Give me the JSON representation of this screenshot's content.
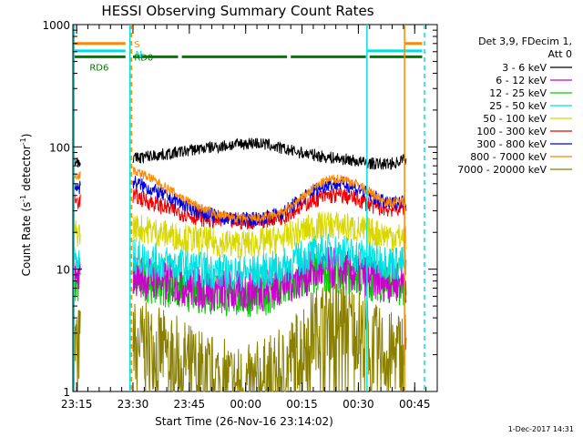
{
  "chart_data": {
    "type": "line",
    "title": "HESSI Observing Summary Count Rates",
    "xlabel": "Start Time (26-Nov-16 23:14:02)",
    "ylabel_main": "Count Rate (s",
    "ylabel_sup1": "-1",
    "ylabel_mid": " detector",
    "ylabel_sup2": "-1",
    "ylabel_end": ")",
    "y_scale": "log",
    "ylim": [
      1,
      1000
    ],
    "xlim_minutes": [
      0,
      97
    ],
    "y_ticks": [
      {
        "value": 1,
        "label": "1"
      },
      {
        "value": 10,
        "label": "10"
      },
      {
        "value": 100,
        "label": "100"
      },
      {
        "value": 1000,
        "label": "1000"
      }
    ],
    "x_ticks": [
      {
        "t": 1,
        "label": "23:15"
      },
      {
        "t": 16,
        "label": "23:30"
      },
      {
        "t": 31,
        "label": "23:45"
      },
      {
        "t": 46,
        "label": "00:00"
      },
      {
        "t": 61,
        "label": "00:15"
      },
      {
        "t": 76,
        "label": "00:30"
      },
      {
        "t": 91,
        "label": "00:45"
      }
    ],
    "legend_header": [
      "Det 3,9, FDecim 1,",
      "Att 0"
    ],
    "series": [
      {
        "name": "3 - 6 keV",
        "color": "#000000",
        "points": [
          [
            16,
            80
          ],
          [
            20,
            84
          ],
          [
            26,
            88
          ],
          [
            32,
            95
          ],
          [
            38,
            100
          ],
          [
            44,
            105
          ],
          [
            48,
            108
          ],
          [
            52,
            104
          ],
          [
            56,
            96
          ],
          [
            62,
            88
          ],
          [
            68,
            82
          ],
          [
            74,
            78
          ],
          [
            78,
            74
          ],
          [
            82,
            72
          ],
          [
            86,
            74
          ],
          [
            88,
            80
          ]
        ]
      },
      {
        "name": "6 - 12 keV",
        "color": "#cc00cc",
        "points": [
          [
            16,
            9
          ],
          [
            20,
            8.5
          ],
          [
            26,
            7.8
          ],
          [
            32,
            7.2
          ],
          [
            38,
            6.8
          ],
          [
            44,
            6.6
          ],
          [
            50,
            6.8
          ],
          [
            56,
            7.5
          ],
          [
            60,
            8.5
          ],
          [
            64,
            9.5
          ],
          [
            68,
            10.2
          ],
          [
            72,
            10
          ],
          [
            76,
            9.2
          ],
          [
            80,
            8.5
          ],
          [
            84,
            8
          ],
          [
            88,
            8
          ]
        ]
      },
      {
        "name": "12 - 25 keV",
        "color": "#00cc00",
        "points": [
          [
            16,
            8.5
          ],
          [
            20,
            8
          ],
          [
            26,
            7.2
          ],
          [
            32,
            6.6
          ],
          [
            38,
            6.2
          ],
          [
            44,
            6
          ],
          [
            50,
            6.2
          ],
          [
            56,
            6.8
          ],
          [
            60,
            8
          ],
          [
            64,
            9
          ],
          [
            68,
            9.6
          ],
          [
            72,
            9.4
          ],
          [
            76,
            8.8
          ],
          [
            80,
            8.2
          ],
          [
            84,
            7.8
          ],
          [
            88,
            7.5
          ]
        ]
      },
      {
        "name": "25 - 50 keV",
        "color": "#00e0e0",
        "points": [
          [
            16,
            12.5
          ],
          [
            20,
            12
          ],
          [
            26,
            11
          ],
          [
            32,
            10.2
          ],
          [
            38,
            9.6
          ],
          [
            44,
            9.3
          ],
          [
            50,
            9.5
          ],
          [
            56,
            10.5
          ],
          [
            60,
            12
          ],
          [
            64,
            13.5
          ],
          [
            68,
            14
          ],
          [
            72,
            13.8
          ],
          [
            76,
            13
          ],
          [
            80,
            12
          ],
          [
            84,
            11.5
          ],
          [
            88,
            11
          ]
        ]
      },
      {
        "name": "50 - 100 keV",
        "color": "#d8d800",
        "points": [
          [
            16,
            22
          ],
          [
            20,
            21
          ],
          [
            26,
            19
          ],
          [
            32,
            17.5
          ],
          [
            38,
            16.5
          ],
          [
            44,
            16
          ],
          [
            50,
            16.5
          ],
          [
            56,
            18
          ],
          [
            60,
            20
          ],
          [
            64,
            22
          ],
          [
            68,
            23
          ],
          [
            72,
            22.5
          ],
          [
            76,
            21
          ],
          [
            80,
            20
          ],
          [
            84,
            19
          ],
          [
            88,
            18
          ]
        ]
      },
      {
        "name": "100 - 300 keV",
        "color": "#ee0000",
        "points": [
          [
            16,
            40
          ],
          [
            20,
            36
          ],
          [
            26,
            31
          ],
          [
            32,
            27
          ],
          [
            38,
            25
          ],
          [
            44,
            24.5
          ],
          [
            50,
            25
          ],
          [
            56,
            27
          ],
          [
            60,
            32
          ],
          [
            64,
            37
          ],
          [
            68,
            40
          ],
          [
            72,
            40
          ],
          [
            76,
            37
          ],
          [
            80,
            33
          ],
          [
            84,
            31
          ],
          [
            88,
            32
          ]
        ]
      },
      {
        "name": "300 - 800 keV",
        "color": "#0000dd",
        "points": [
          [
            16,
            52
          ],
          [
            20,
            46
          ],
          [
            26,
            38
          ],
          [
            32,
            31
          ],
          [
            38,
            27
          ],
          [
            44,
            25.5
          ],
          [
            50,
            26
          ],
          [
            56,
            29
          ],
          [
            60,
            36
          ],
          [
            64,
            44
          ],
          [
            68,
            50
          ],
          [
            72,
            50
          ],
          [
            76,
            45
          ],
          [
            80,
            39
          ],
          [
            84,
            34
          ],
          [
            88,
            36
          ]
        ]
      },
      {
        "name": "800 - 7000 keV",
        "color": "#ff8800",
        "points": [
          [
            16,
            65
          ],
          [
            20,
            57
          ],
          [
            26,
            44
          ],
          [
            32,
            34
          ],
          [
            38,
            28
          ],
          [
            44,
            26
          ],
          [
            50,
            26
          ],
          [
            56,
            29
          ],
          [
            60,
            36
          ],
          [
            64,
            46
          ],
          [
            68,
            54
          ],
          [
            72,
            55
          ],
          [
            76,
            49
          ],
          [
            80,
            41
          ],
          [
            84,
            35
          ],
          [
            88,
            36
          ]
        ]
      },
      {
        "name": "7000 - 20000 keV",
        "color": "#8a8000",
        "points": [
          [
            16,
            2.6
          ],
          [
            20,
            2.4
          ],
          [
            26,
            2
          ],
          [
            32,
            1.6
          ],
          [
            38,
            1.3
          ],
          [
            44,
            1.1
          ],
          [
            50,
            1.2
          ],
          [
            56,
            1.5
          ],
          [
            60,
            2.2
          ],
          [
            64,
            3.2
          ],
          [
            68,
            4
          ],
          [
            72,
            4
          ],
          [
            76,
            3.2
          ],
          [
            80,
            2.4
          ],
          [
            84,
            2
          ],
          [
            88,
            2.2
          ]
        ]
      }
    ],
    "band_labels": [
      {
        "text": "S",
        "color": "#ff8800"
      },
      {
        "text": "N",
        "color": "#00e0e0"
      },
      {
        "text": "RD0",
        "color": "#007a00"
      },
      {
        "text": "RD6",
        "color": "#007a00"
      }
    ],
    "timestamp": "1-Dec-2017 14:31"
  }
}
